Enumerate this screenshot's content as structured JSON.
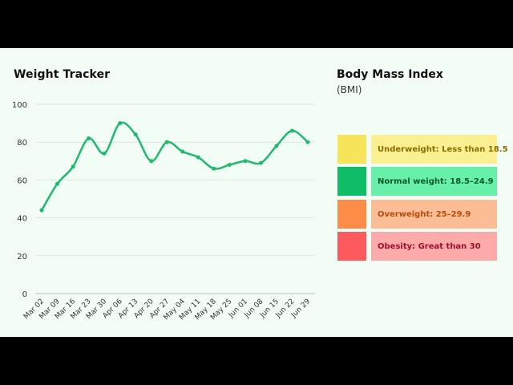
{
  "chart_data": {
    "type": "line",
    "title": "Weight Tracker",
    "xlabel": "",
    "ylabel": "",
    "categories": [
      "Mar 02",
      "Mar 09",
      "Mar 16",
      "Mar 23",
      "Mar 30",
      "Apr 06",
      "Apr 13",
      "Apr 20",
      "Apr 27",
      "May 04",
      "May 11",
      "May 18",
      "May 25",
      "Jun 01",
      "Jun 08",
      "Jun 15",
      "Jun 22",
      "Jun 29"
    ],
    "values": [
      44,
      58,
      67,
      82,
      74,
      90,
      84,
      70,
      80,
      75,
      72,
      66,
      68,
      70,
      69,
      78,
      86,
      80
    ],
    "ylim": [
      0,
      100
    ],
    "yticks": [
      "0",
      "20",
      "40",
      "60",
      "80",
      "100"
    ],
    "grid": true,
    "legend": "none",
    "series_color": "#1fba6e"
  },
  "bmi": {
    "title": "Body Mass Index",
    "subtitle": "(BMI)",
    "items": [
      {
        "label": "Underweight: Less than 18.5",
        "swatch": "#f6e55a",
        "bg": "#fbf091",
        "text_color": "#8a6d00"
      },
      {
        "label": "Normal weight: 18.5–24.9",
        "swatch": "#0fbd66",
        "bg": "#66f0a8",
        "text_color": "#0a5a2a"
      },
      {
        "label": "Overweight: 25–29.9",
        "swatch": "#fc8c48",
        "bg": "#fcbc94",
        "text_color": "#b54d0f"
      },
      {
        "label": "Obesity: Great than 30",
        "swatch": "#fc5a5c",
        "bg": "#fdaaaa",
        "text_color": "#a1102a"
      }
    ]
  }
}
